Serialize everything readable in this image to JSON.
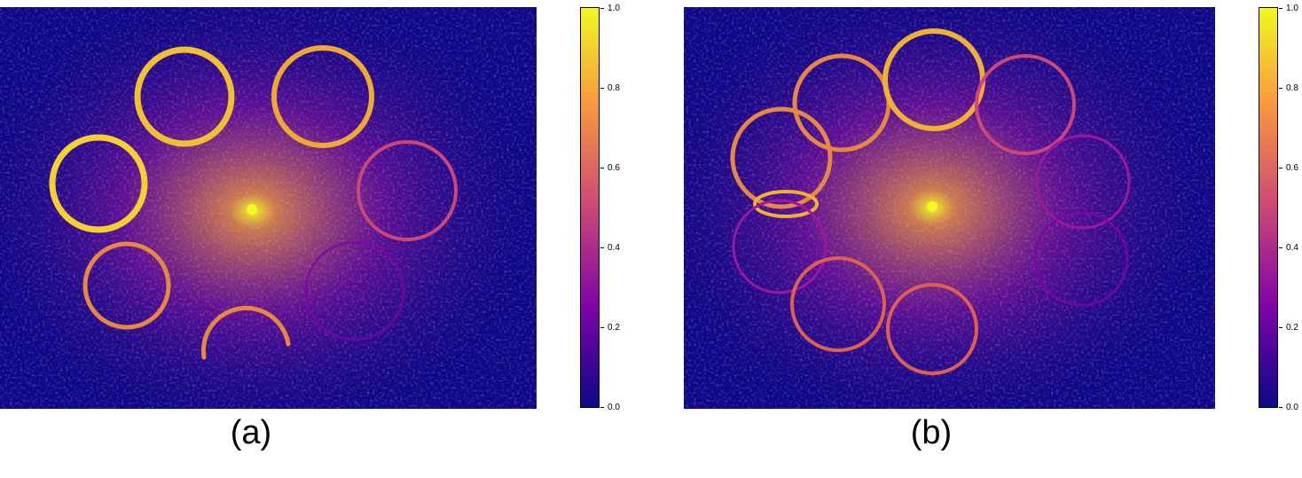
{
  "figure": {
    "colormap": "plasma",
    "colors": {
      "low": "#0d0887",
      "mid_low": "#7e03a8",
      "mid": "#cc4778",
      "mid_high": "#f89540",
      "high": "#f0f921"
    },
    "panels": [
      {
        "caption": "(a)",
        "colorbar": {
          "min": 0.0,
          "max": 1.0,
          "ticks": [
            "0.0",
            "0.2",
            "0.4",
            "0.6",
            "0.8",
            "1.0"
          ]
        }
      },
      {
        "caption": "(b)",
        "colorbar": {
          "min": 0.0,
          "max": 1.0,
          "ticks": [
            "0.0",
            "0.2",
            "0.4",
            "0.6",
            "0.8",
            "1.0"
          ]
        }
      }
    ]
  }
}
